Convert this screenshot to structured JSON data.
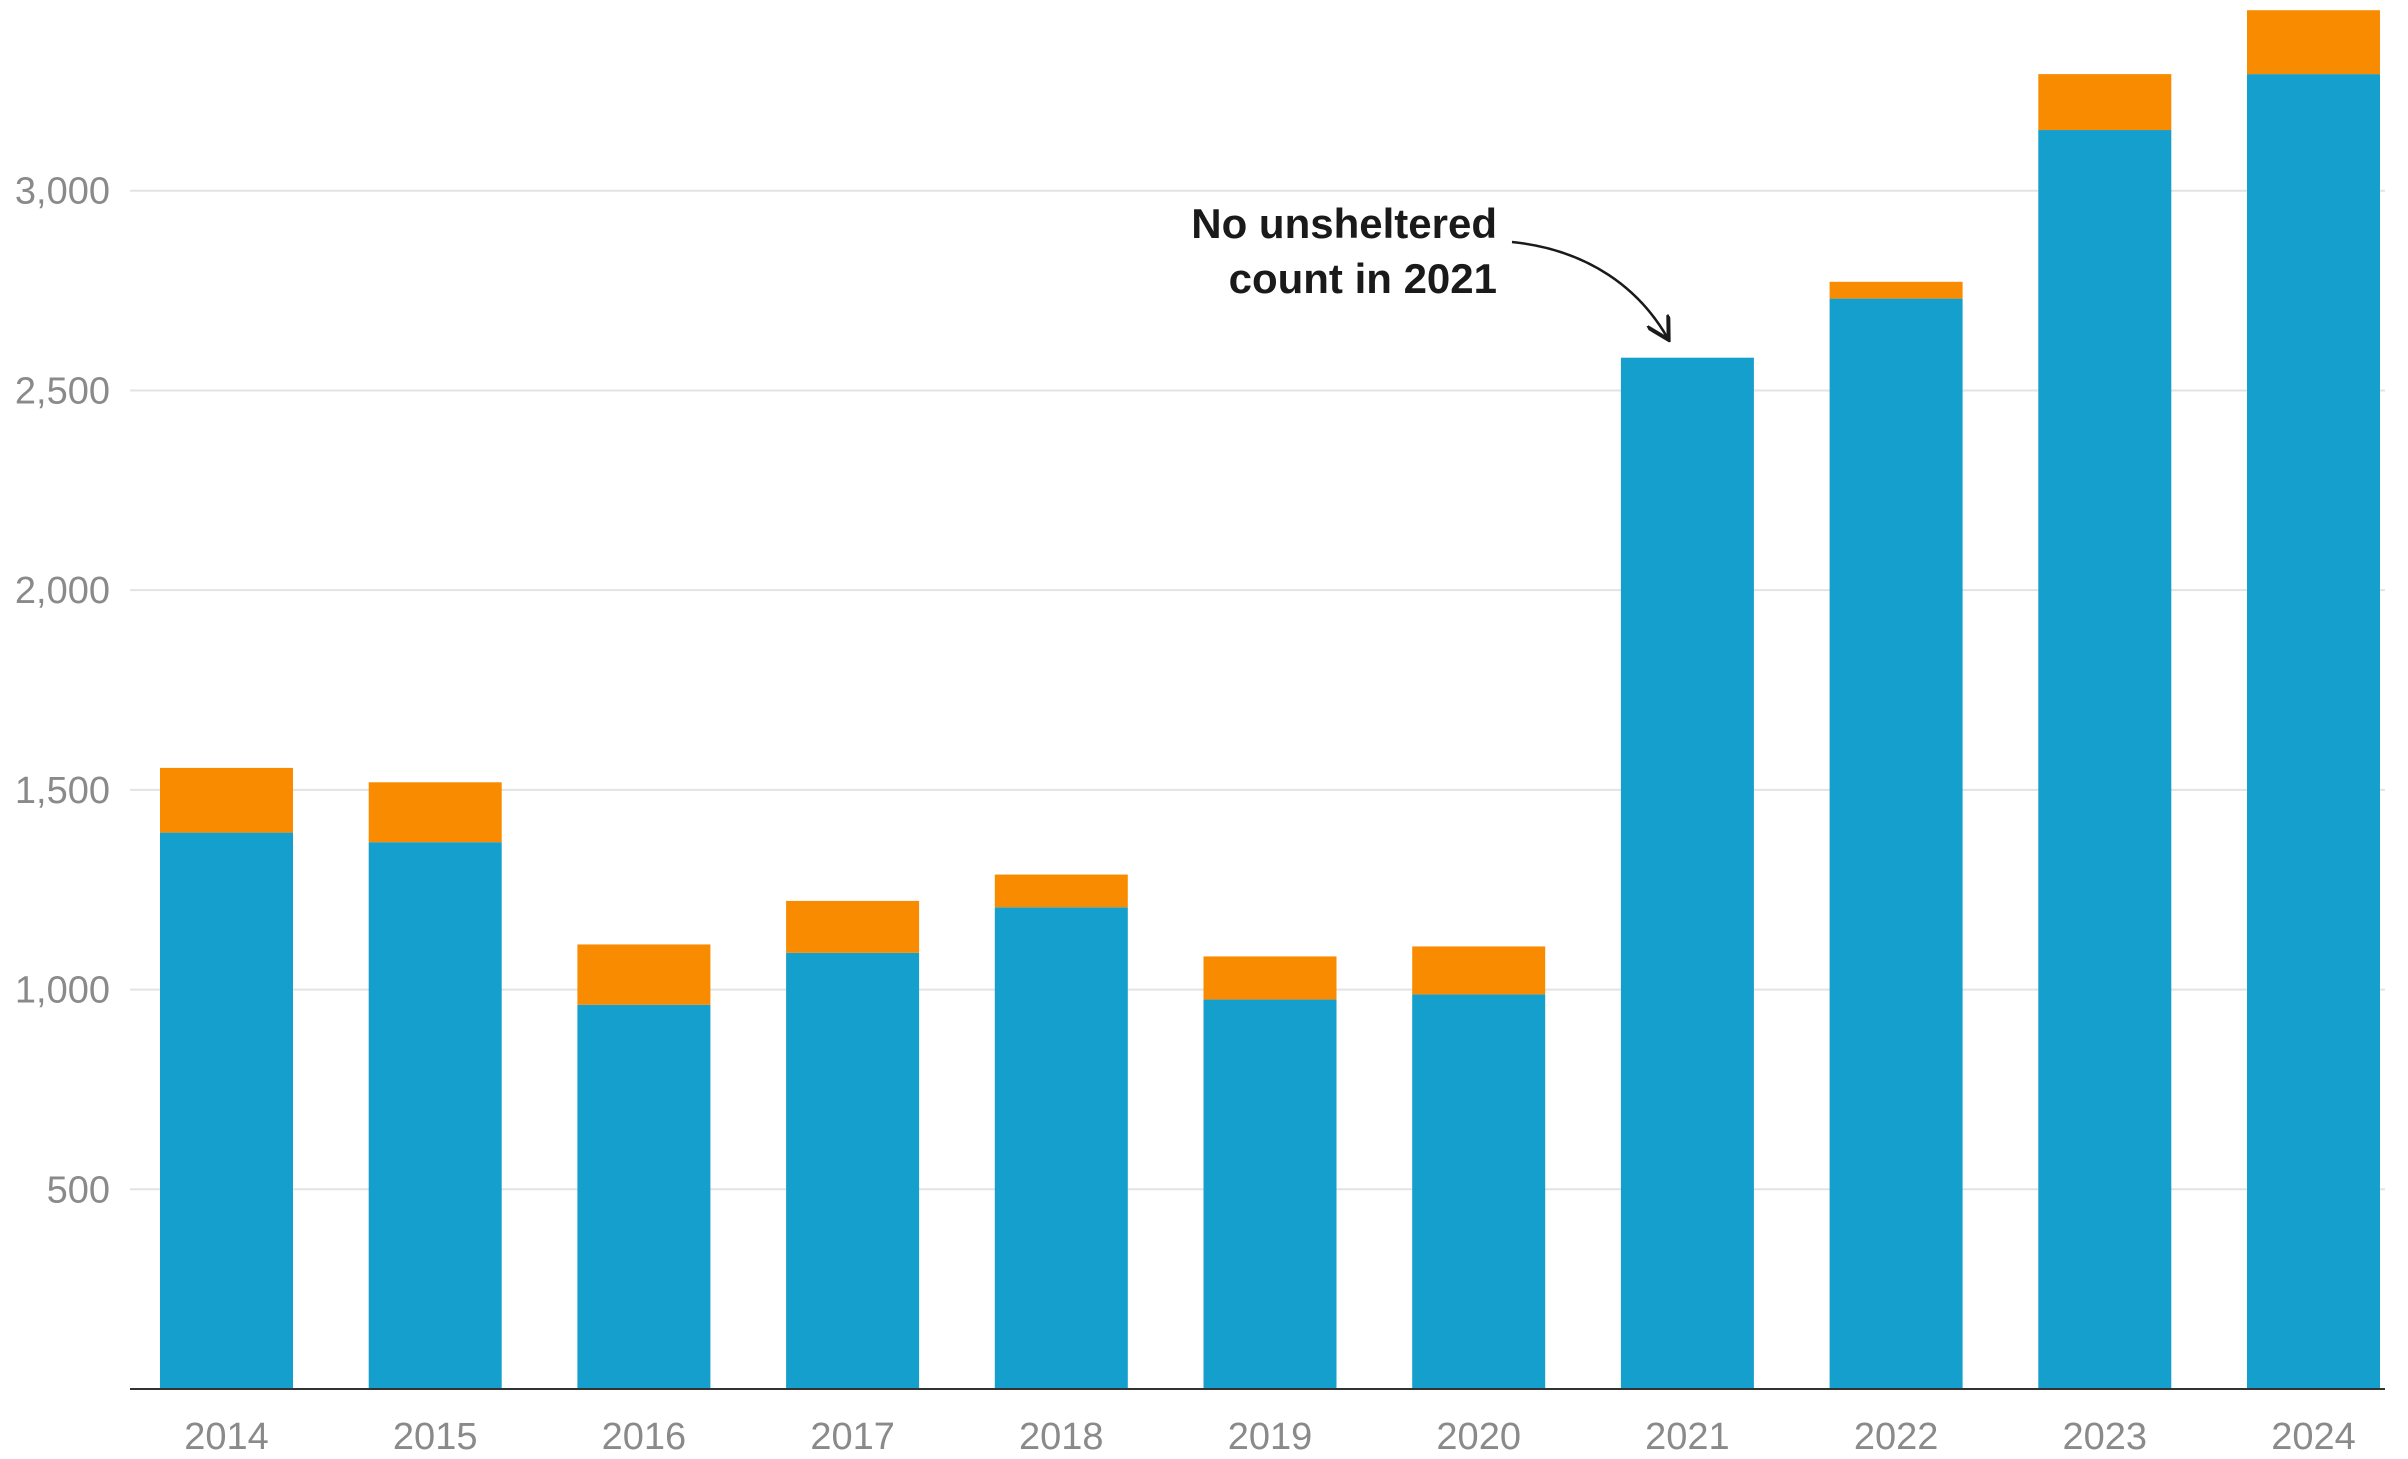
{
  "chart_data": {
    "type": "bar",
    "stacked": true,
    "title": "",
    "xlabel": "",
    "ylabel": "",
    "categories": [
      "2014",
      "2015",
      "2016",
      "2017",
      "2018",
      "2019",
      "2020",
      "2021",
      "2022",
      "2023",
      "2024"
    ],
    "series": [
      {
        "color": "#149fcc",
        "values": [
          1393,
          1369,
          962,
          1092,
          1206,
          975,
          988,
          2582,
          2730,
          3152,
          3292
        ]
      },
      {
        "color": "#f98b00",
        "values": [
          162,
          150,
          151,
          130,
          82,
          108,
          120,
          0,
          42,
          140,
          160
        ]
      }
    ],
    "ylim": [
      0,
      3450
    ],
    "yticks": [
      500,
      1000,
      1500,
      2000,
      2500,
      3000
    ],
    "ytick_labels": [
      "500",
      "1,000",
      "1,500",
      "2,000",
      "2,500",
      "3,000"
    ],
    "grid": true,
    "legend": "none",
    "annotations": [
      {
        "category": "2021",
        "lines": [
          "No unsheltered",
          "count in 2021"
        ]
      }
    ]
  }
}
